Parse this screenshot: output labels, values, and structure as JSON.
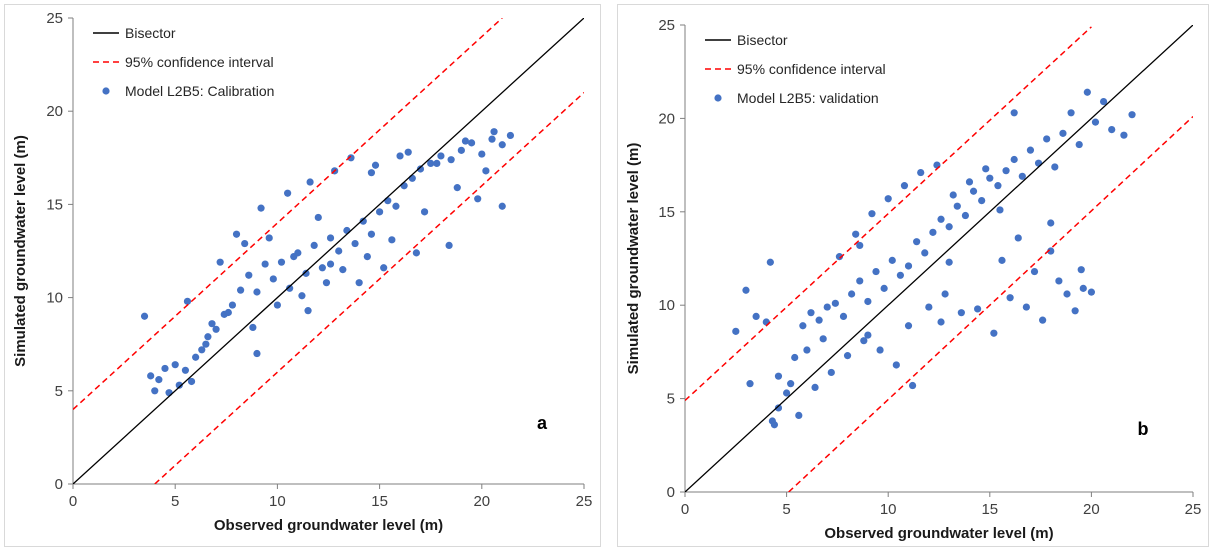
{
  "chart_data": [
    {
      "type": "scatter",
      "panel_label": "a",
      "xlabel": "Observed groundwater level (m)",
      "ylabel": "Simulated groundwater level (m)",
      "xlim": [
        0,
        25
      ],
      "ylim": [
        0,
        25
      ],
      "xticks": [
        "0",
        "5",
        "10",
        "15",
        "20",
        "25"
      ],
      "yticks": [
        "0",
        "5",
        "10",
        "15",
        "20",
        "25"
      ],
      "grid": false,
      "legend_position": "top-left",
      "colors": {
        "bisector": "#000000",
        "confidence": "#ff0000",
        "points": "#4472c4"
      },
      "series": [
        {
          "name": "Bisector",
          "kind": "line",
          "x": [
            0,
            25
          ],
          "y": [
            0,
            25
          ]
        },
        {
          "name": "95% confidence interval",
          "kind": "dashed-line",
          "x": [
            0,
            21
          ],
          "y": [
            4,
            25
          ]
        },
        {
          "name": "95% confidence interval",
          "kind": "dashed-line",
          "x": [
            4,
            25
          ],
          "y": [
            0,
            21
          ]
        },
        {
          "name": "Model L2B5: Calibration",
          "kind": "points",
          "x": [
            3.8,
            4.0,
            4.2,
            4.5,
            4.7,
            5.0,
            5.2,
            5.5,
            5.8,
            6.0,
            6.3,
            6.6,
            7.0,
            7.4,
            7.8,
            8.2,
            8.6,
            9.0,
            9.4,
            9.8,
            10.2,
            10.6,
            11.0,
            11.4,
            11.8,
            12.2,
            12.6,
            13.0,
            13.4,
            13.8,
            14.2,
            14.6,
            15.0,
            15.4,
            15.8,
            16.2,
            16.6,
            17.0,
            17.5,
            18.0,
            18.5,
            19.0,
            19.5,
            20.0,
            20.5,
            21.0,
            21.4,
            8.0,
            9.2,
            10.5,
            11.6,
            12.8,
            13.6,
            14.8,
            16.4,
            17.8,
            19.2,
            20.6,
            6.8,
            7.6,
            8.8,
            10.0,
            11.2,
            12.4,
            13.2,
            14.4,
            15.6,
            17.2,
            18.8,
            20.2,
            5.6,
            7.2,
            9.6,
            12.0,
            15.2,
            18.4,
            3.5,
            6.5,
            9.0,
            11.5,
            14.0,
            16.8,
            19.8,
            21.0,
            10.8,
            12.6,
            14.6,
            8.4,
            16.0
          ],
          "y": [
            5.8,
            5.0,
            5.6,
            6.2,
            4.9,
            6.4,
            5.3,
            6.1,
            5.5,
            6.8,
            7.2,
            7.9,
            8.3,
            9.1,
            9.6,
            10.4,
            11.2,
            10.3,
            11.8,
            11.0,
            11.9,
            10.5,
            12.4,
            11.3,
            12.8,
            11.6,
            13.2,
            12.5,
            13.6,
            12.9,
            14.1,
            13.4,
            14.6,
            15.2,
            14.9,
            16.0,
            16.4,
            16.9,
            17.2,
            17.6,
            17.4,
            17.9,
            18.3,
            17.7,
            18.5,
            18.2,
            18.7,
            13.4,
            14.8,
            15.6,
            16.2,
            16.8,
            17.5,
            17.1,
            17.8,
            17.2,
            18.4,
            18.9,
            8.6,
            9.2,
            8.4,
            9.6,
            10.1,
            10.8,
            11.5,
            12.2,
            13.1,
            14.6,
            15.9,
            16.8,
            9.8,
            11.9,
            13.2,
            14.3,
            11.6,
            12.8,
            9.0,
            7.5,
            7.0,
            9.3,
            10.8,
            12.4,
            15.3,
            14.9,
            12.2,
            11.8,
            16.7,
            12.9,
            17.6
          ]
        }
      ]
    },
    {
      "type": "scatter",
      "panel_label": "b",
      "xlabel": "Observed groundwater level (m)",
      "ylabel": "Simulated groundwater level (m)",
      "xlim": [
        0,
        25
      ],
      "ylim": [
        0,
        25
      ],
      "xticks": [
        "0",
        "5",
        "10",
        "15",
        "20",
        "25"
      ],
      "yticks": [
        "0",
        "5",
        "10",
        "15",
        "20",
        "25"
      ],
      "grid": false,
      "legend_position": "top-left",
      "colors": {
        "bisector": "#000000",
        "confidence": "#ff0000",
        "points": "#4472c4"
      },
      "series": [
        {
          "name": "Bisector",
          "kind": "line",
          "x": [
            0,
            25
          ],
          "y": [
            0,
            25
          ]
        },
        {
          "name": "95% confidence interval",
          "kind": "dashed-line",
          "x": [
            0,
            20
          ],
          "y": [
            4.9,
            24.9
          ]
        },
        {
          "name": "95% confidence interval",
          "kind": "dashed-line",
          "x": [
            5.1,
            25
          ],
          "y": [
            0,
            20.1
          ]
        },
        {
          "name": "Model L2B5: validation",
          "kind": "points",
          "x": [
            2.5,
            3.0,
            3.5,
            4.0,
            4.3,
            4.6,
            5.0,
            5.4,
            5.8,
            6.2,
            6.6,
            7.0,
            7.4,
            7.8,
            8.2,
            8.6,
            9.0,
            9.4,
            9.8,
            10.2,
            10.6,
            11.0,
            11.4,
            11.8,
            12.2,
            12.6,
            13.0,
            13.4,
            13.8,
            14.2,
            14.6,
            15.0,
            15.4,
            15.8,
            16.2,
            16.6,
            17.0,
            17.4,
            17.8,
            18.2,
            18.6,
            19.0,
            19.4,
            19.8,
            20.2,
            20.6,
            21.0,
            21.6,
            22.0,
            4.2,
            4.6,
            5.2,
            6.0,
            6.8,
            7.6,
            8.4,
            9.2,
            10.0,
            10.8,
            11.6,
            12.4,
            13.2,
            14.0,
            14.8,
            15.6,
            16.4,
            17.2,
            18.0,
            18.8,
            19.6,
            6.4,
            7.2,
            8.0,
            8.8,
            9.6,
            10.4,
            11.2,
            12.0,
            12.8,
            13.6,
            14.4,
            15.2,
            16.0,
            16.8,
            17.6,
            18.4,
            19.2,
            20.0,
            3.2,
            5.6,
            9.0,
            11.0,
            13.0,
            15.5,
            18.0,
            19.5,
            4.4,
            8.6,
            12.6,
            16.2
          ],
          "y": [
            8.6,
            10.8,
            9.4,
            9.1,
            3.8,
            4.5,
            5.3,
            7.2,
            8.9,
            9.6,
            9.2,
            9.9,
            10.1,
            9.4,
            10.6,
            11.3,
            10.2,
            11.8,
            10.9,
            12.4,
            11.6,
            12.1,
            13.4,
            12.8,
            13.9,
            14.6,
            14.2,
            15.3,
            14.8,
            16.1,
            15.6,
            16.8,
            16.4,
            17.2,
            17.8,
            16.9,
            18.3,
            17.6,
            18.9,
            17.4,
            19.2,
            20.3,
            18.6,
            21.4,
            19.8,
            20.9,
            19.4,
            19.1,
            20.2,
            12.3,
            6.2,
            5.8,
            7.6,
            8.2,
            12.6,
            13.8,
            14.9,
            15.7,
            16.4,
            17.1,
            17.5,
            15.9,
            16.6,
            17.3,
            12.4,
            13.6,
            11.8,
            12.9,
            10.6,
            10.9,
            5.6,
            6.4,
            7.3,
            8.1,
            7.6,
            6.8,
            5.7,
            9.9,
            10.6,
            9.6,
            9.8,
            8.5,
            10.4,
            9.9,
            9.2,
            11.3,
            9.7,
            10.7,
            5.8,
            4.1,
            8.4,
            8.9,
            12.3,
            15.1,
            14.4,
            11.9,
            3.6,
            13.2,
            9.1,
            20.3
          ]
        }
      ]
    }
  ]
}
